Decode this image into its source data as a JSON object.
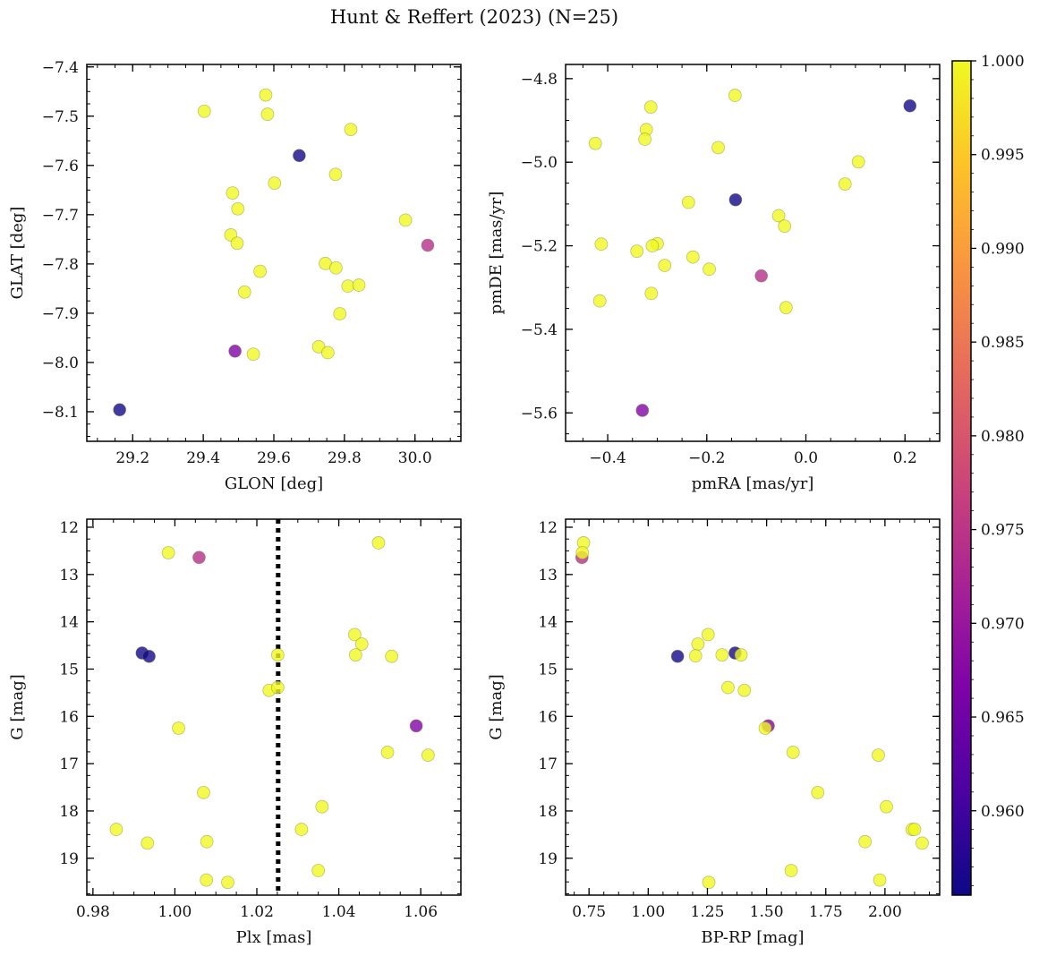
{
  "figure": {
    "title": "Hunt & Reffert (2023) (N=25)"
  },
  "colorbar": {
    "colormap": "plasma",
    "range": [
      0.9555,
      1.0
    ],
    "ticks": [
      "1.000",
      "0.995",
      "0.990",
      "0.985",
      "0.980",
      "0.975",
      "0.970",
      "0.965",
      "0.960"
    ],
    "tick_values": [
      1.0,
      0.995,
      0.99,
      0.985,
      0.98,
      0.975,
      0.97,
      0.965,
      0.96
    ]
  },
  "chart_data": [
    {
      "type": "scatter",
      "id": "glon-glat",
      "xlabel": "GLON [deg]",
      "ylabel": "GLAT [deg]",
      "xlim": [
        29.07,
        30.13
      ],
      "ylim": [
        -8.16,
        -7.395
      ],
      "y_inverted": false,
      "xticks": [
        29.2,
        29.4,
        29.6,
        29.8,
        30.0
      ],
      "xtick_labels": [
        "29.2",
        "29.4",
        "29.6",
        "29.8",
        "30.0"
      ],
      "yticks": [
        -7.4,
        -7.5,
        -7.6,
        -7.7,
        -7.8,
        -7.9,
        -8.0,
        -8.1
      ],
      "ytick_labels": [
        "−7.4",
        "−7.5",
        "−7.6",
        "−7.7",
        "−7.8",
        "−7.9",
        "−8.0",
        "−8.1"
      ],
      "points": [
        {
          "x": 29.403,
          "y": -7.49,
          "c": 1.0
        },
        {
          "x": 29.577,
          "y": -7.457,
          "c": 1.0
        },
        {
          "x": 29.582,
          "y": -7.496,
          "c": 1.0
        },
        {
          "x": 29.818,
          "y": -7.527,
          "c": 1.0
        },
        {
          "x": 29.672,
          "y": -7.58,
          "c": 0.956
        },
        {
          "x": 29.775,
          "y": -7.618,
          "c": 1.0
        },
        {
          "x": 29.602,
          "y": -7.636,
          "c": 1.0
        },
        {
          "x": 29.483,
          "y": -7.656,
          "c": 1.0
        },
        {
          "x": 29.498,
          "y": -7.688,
          "c": 1.0
        },
        {
          "x": 29.973,
          "y": -7.711,
          "c": 1.0
        },
        {
          "x": 29.478,
          "y": -7.741,
          "c": 1.0
        },
        {
          "x": 29.496,
          "y": -7.758,
          "c": 1.0
        },
        {
          "x": 30.036,
          "y": -7.762,
          "c": 0.974
        },
        {
          "x": 29.746,
          "y": -7.799,
          "c": 1.0
        },
        {
          "x": 29.776,
          "y": -7.808,
          "c": 1.0
        },
        {
          "x": 29.561,
          "y": -7.815,
          "c": 1.0
        },
        {
          "x": 29.81,
          "y": -7.845,
          "c": 1.0
        },
        {
          "x": 29.841,
          "y": -7.843,
          "c": 1.0
        },
        {
          "x": 29.517,
          "y": -7.857,
          "c": 1.0
        },
        {
          "x": 29.787,
          "y": -7.901,
          "c": 1.0
        },
        {
          "x": 29.727,
          "y": -7.968,
          "c": 1.0
        },
        {
          "x": 29.753,
          "y": -7.98,
          "c": 1.0
        },
        {
          "x": 29.49,
          "y": -7.977,
          "c": 0.967
        },
        {
          "x": 29.542,
          "y": -7.983,
          "c": 1.0
        },
        {
          "x": 29.163,
          "y": -8.096,
          "c": 0.956
        }
      ]
    },
    {
      "type": "scatter",
      "id": "pmra-pmde",
      "xlabel": "pmRA [mas/yr]",
      "ylabel": "pmDE [mas/yr]",
      "xlim": [
        -0.485,
        0.27
      ],
      "ylim": [
        -5.668,
        -4.766
      ],
      "y_inverted": false,
      "xticks": [
        -0.4,
        -0.2,
        0.0,
        0.2
      ],
      "xtick_labels": [
        "−0.4",
        "−0.2",
        "0.0",
        "0.2"
      ],
      "yticks": [
        -4.8,
        -5.0,
        -5.2,
        -5.4,
        -5.6
      ],
      "ytick_labels": [
        "−4.8",
        "−5.0",
        "−5.2",
        "−5.4",
        "−5.6"
      ],
      "points": [
        {
          "x": -0.143,
          "y": -4.84,
          "c": 1.0
        },
        {
          "x": 0.21,
          "y": -4.865,
          "c": 0.956
        },
        {
          "x": -0.313,
          "y": -4.868,
          "c": 1.0
        },
        {
          "x": -0.322,
          "y": -4.922,
          "c": 1.0
        },
        {
          "x": -0.325,
          "y": -4.945,
          "c": 1.0
        },
        {
          "x": -0.425,
          "y": -4.955,
          "c": 1.0
        },
        {
          "x": -0.177,
          "y": -4.965,
          "c": 1.0
        },
        {
          "x": 0.106,
          "y": -4.999,
          "c": 1.0
        },
        {
          "x": 0.079,
          "y": -5.052,
          "c": 1.0
        },
        {
          "x": -0.142,
          "y": -5.09,
          "c": 0.956
        },
        {
          "x": -0.237,
          "y": -5.096,
          "c": 1.0
        },
        {
          "x": -0.055,
          "y": -5.128,
          "c": 1.0
        },
        {
          "x": -0.043,
          "y": -5.153,
          "c": 1.0
        },
        {
          "x": -0.413,
          "y": -5.196,
          "c": 1.0
        },
        {
          "x": -0.3,
          "y": -5.195,
          "c": 1.0
        },
        {
          "x": -0.31,
          "y": -5.2,
          "c": 1.0
        },
        {
          "x": -0.341,
          "y": -5.213,
          "c": 1.0
        },
        {
          "x": -0.228,
          "y": -5.227,
          "c": 1.0
        },
        {
          "x": -0.285,
          "y": -5.247,
          "c": 1.0
        },
        {
          "x": -0.195,
          "y": -5.256,
          "c": 1.0
        },
        {
          "x": -0.09,
          "y": -5.272,
          "c": 0.974
        },
        {
          "x": -0.312,
          "y": -5.314,
          "c": 1.0
        },
        {
          "x": -0.416,
          "y": -5.332,
          "c": 1.0
        },
        {
          "x": -0.04,
          "y": -5.348,
          "c": 1.0
        },
        {
          "x": -0.33,
          "y": -5.594,
          "c": 0.967
        }
      ]
    },
    {
      "type": "scatter",
      "id": "plx-g",
      "xlabel": "Plx [mas]",
      "ylabel": "G [mag]",
      "xlim": [
        0.9785,
        1.0698
      ],
      "ylim": [
        19.78,
        11.83
      ],
      "y_inverted": true,
      "xticks": [
        0.98,
        1.0,
        1.02,
        1.04,
        1.06
      ],
      "xtick_labels": [
        "0.98",
        "1.00",
        "1.02",
        "1.04",
        "1.06"
      ],
      "yticks": [
        12,
        13,
        14,
        15,
        16,
        17,
        18,
        19
      ],
      "ytick_labels": [
        "12",
        "13",
        "14",
        "15",
        "16",
        "17",
        "18",
        "19"
      ],
      "reference_line": {
        "x": 1.0252,
        "style": "dotted"
      },
      "points": [
        {
          "x": 1.0497,
          "y": 12.33,
          "c": 1.0
        },
        {
          "x": 0.9984,
          "y": 12.54,
          "c": 1.0
        },
        {
          "x": 1.0059,
          "y": 12.64,
          "c": 0.974
        },
        {
          "x": 1.0439,
          "y": 14.27,
          "c": 1.0
        },
        {
          "x": 1.0456,
          "y": 14.47,
          "c": 1.0
        },
        {
          "x": 0.992,
          "y": 14.66,
          "c": 0.956
        },
        {
          "x": 0.9937,
          "y": 14.73,
          "c": 0.956
        },
        {
          "x": 1.0251,
          "y": 14.7,
          "c": 1.0
        },
        {
          "x": 1.0441,
          "y": 14.7,
          "c": 1.0
        },
        {
          "x": 1.0529,
          "y": 14.73,
          "c": 1.0
        },
        {
          "x": 1.023,
          "y": 15.45,
          "c": 1.0
        },
        {
          "x": 1.0251,
          "y": 15.39,
          "c": 1.0
        },
        {
          "x": 1.0589,
          "y": 16.2,
          "c": 0.967
        },
        {
          "x": 1.0009,
          "y": 16.25,
          "c": 1.0
        },
        {
          "x": 1.0519,
          "y": 16.76,
          "c": 1.0
        },
        {
          "x": 1.0618,
          "y": 16.82,
          "c": 1.0
        },
        {
          "x": 1.007,
          "y": 17.61,
          "c": 1.0
        },
        {
          "x": 1.0359,
          "y": 17.91,
          "c": 1.0
        },
        {
          "x": 0.9857,
          "y": 18.39,
          "c": 1.0
        },
        {
          "x": 1.0309,
          "y": 18.39,
          "c": 1.0
        },
        {
          "x": 0.9933,
          "y": 18.68,
          "c": 1.0
        },
        {
          "x": 1.0078,
          "y": 18.65,
          "c": 1.0
        },
        {
          "x": 1.035,
          "y": 19.26,
          "c": 1.0
        },
        {
          "x": 1.0077,
          "y": 19.46,
          "c": 1.0
        },
        {
          "x": 1.0129,
          "y": 19.51,
          "c": 1.0
        }
      ]
    },
    {
      "type": "scatter",
      "id": "bprp-g",
      "xlabel": "BP-RP [mag]",
      "ylabel": "G [mag]",
      "xlim": [
        0.651,
        2.231
      ],
      "ylim": [
        19.78,
        11.83
      ],
      "y_inverted": true,
      "xticks": [
        0.75,
        1.0,
        1.25,
        1.5,
        1.75,
        2.0
      ],
      "xtick_labels": [
        "0.75",
        "1.00",
        "1.25",
        "1.50",
        "1.75",
        "2.00"
      ],
      "yticks": [
        12,
        13,
        14,
        15,
        16,
        17,
        18,
        19
      ],
      "ytick_labels": [
        "12",
        "13",
        "14",
        "15",
        "16",
        "17",
        "18",
        "19"
      ],
      "points": [
        {
          "x": 0.727,
          "y": 12.33,
          "c": 1.0
        },
        {
          "x": 0.72,
          "y": 12.64,
          "c": 0.974
        },
        {
          "x": 0.722,
          "y": 12.54,
          "c": 1.0
        },
        {
          "x": 1.253,
          "y": 14.27,
          "c": 1.0
        },
        {
          "x": 1.21,
          "y": 14.47,
          "c": 1.0
        },
        {
          "x": 1.367,
          "y": 14.66,
          "c": 0.956
        },
        {
          "x": 1.124,
          "y": 14.73,
          "c": 0.956
        },
        {
          "x": 1.2,
          "y": 14.72,
          "c": 1.0
        },
        {
          "x": 1.312,
          "y": 14.7,
          "c": 1.0
        },
        {
          "x": 1.392,
          "y": 14.7,
          "c": 1.0
        },
        {
          "x": 1.337,
          "y": 15.39,
          "c": 1.0
        },
        {
          "x": 1.406,
          "y": 15.45,
          "c": 1.0
        },
        {
          "x": 1.507,
          "y": 16.2,
          "c": 0.967
        },
        {
          "x": 1.494,
          "y": 16.25,
          "c": 1.0
        },
        {
          "x": 1.612,
          "y": 16.76,
          "c": 1.0
        },
        {
          "x": 1.972,
          "y": 16.82,
          "c": 1.0
        },
        {
          "x": 1.716,
          "y": 17.61,
          "c": 1.0
        },
        {
          "x": 2.006,
          "y": 17.91,
          "c": 1.0
        },
        {
          "x": 2.115,
          "y": 18.39,
          "c": 1.0
        },
        {
          "x": 2.125,
          "y": 18.39,
          "c": 1.0
        },
        {
          "x": 1.916,
          "y": 18.65,
          "c": 1.0
        },
        {
          "x": 2.157,
          "y": 18.68,
          "c": 1.0
        },
        {
          "x": 1.604,
          "y": 19.26,
          "c": 1.0
        },
        {
          "x": 1.978,
          "y": 19.46,
          "c": 1.0
        },
        {
          "x": 1.256,
          "y": 19.51,
          "c": 1.0
        }
      ]
    }
  ]
}
